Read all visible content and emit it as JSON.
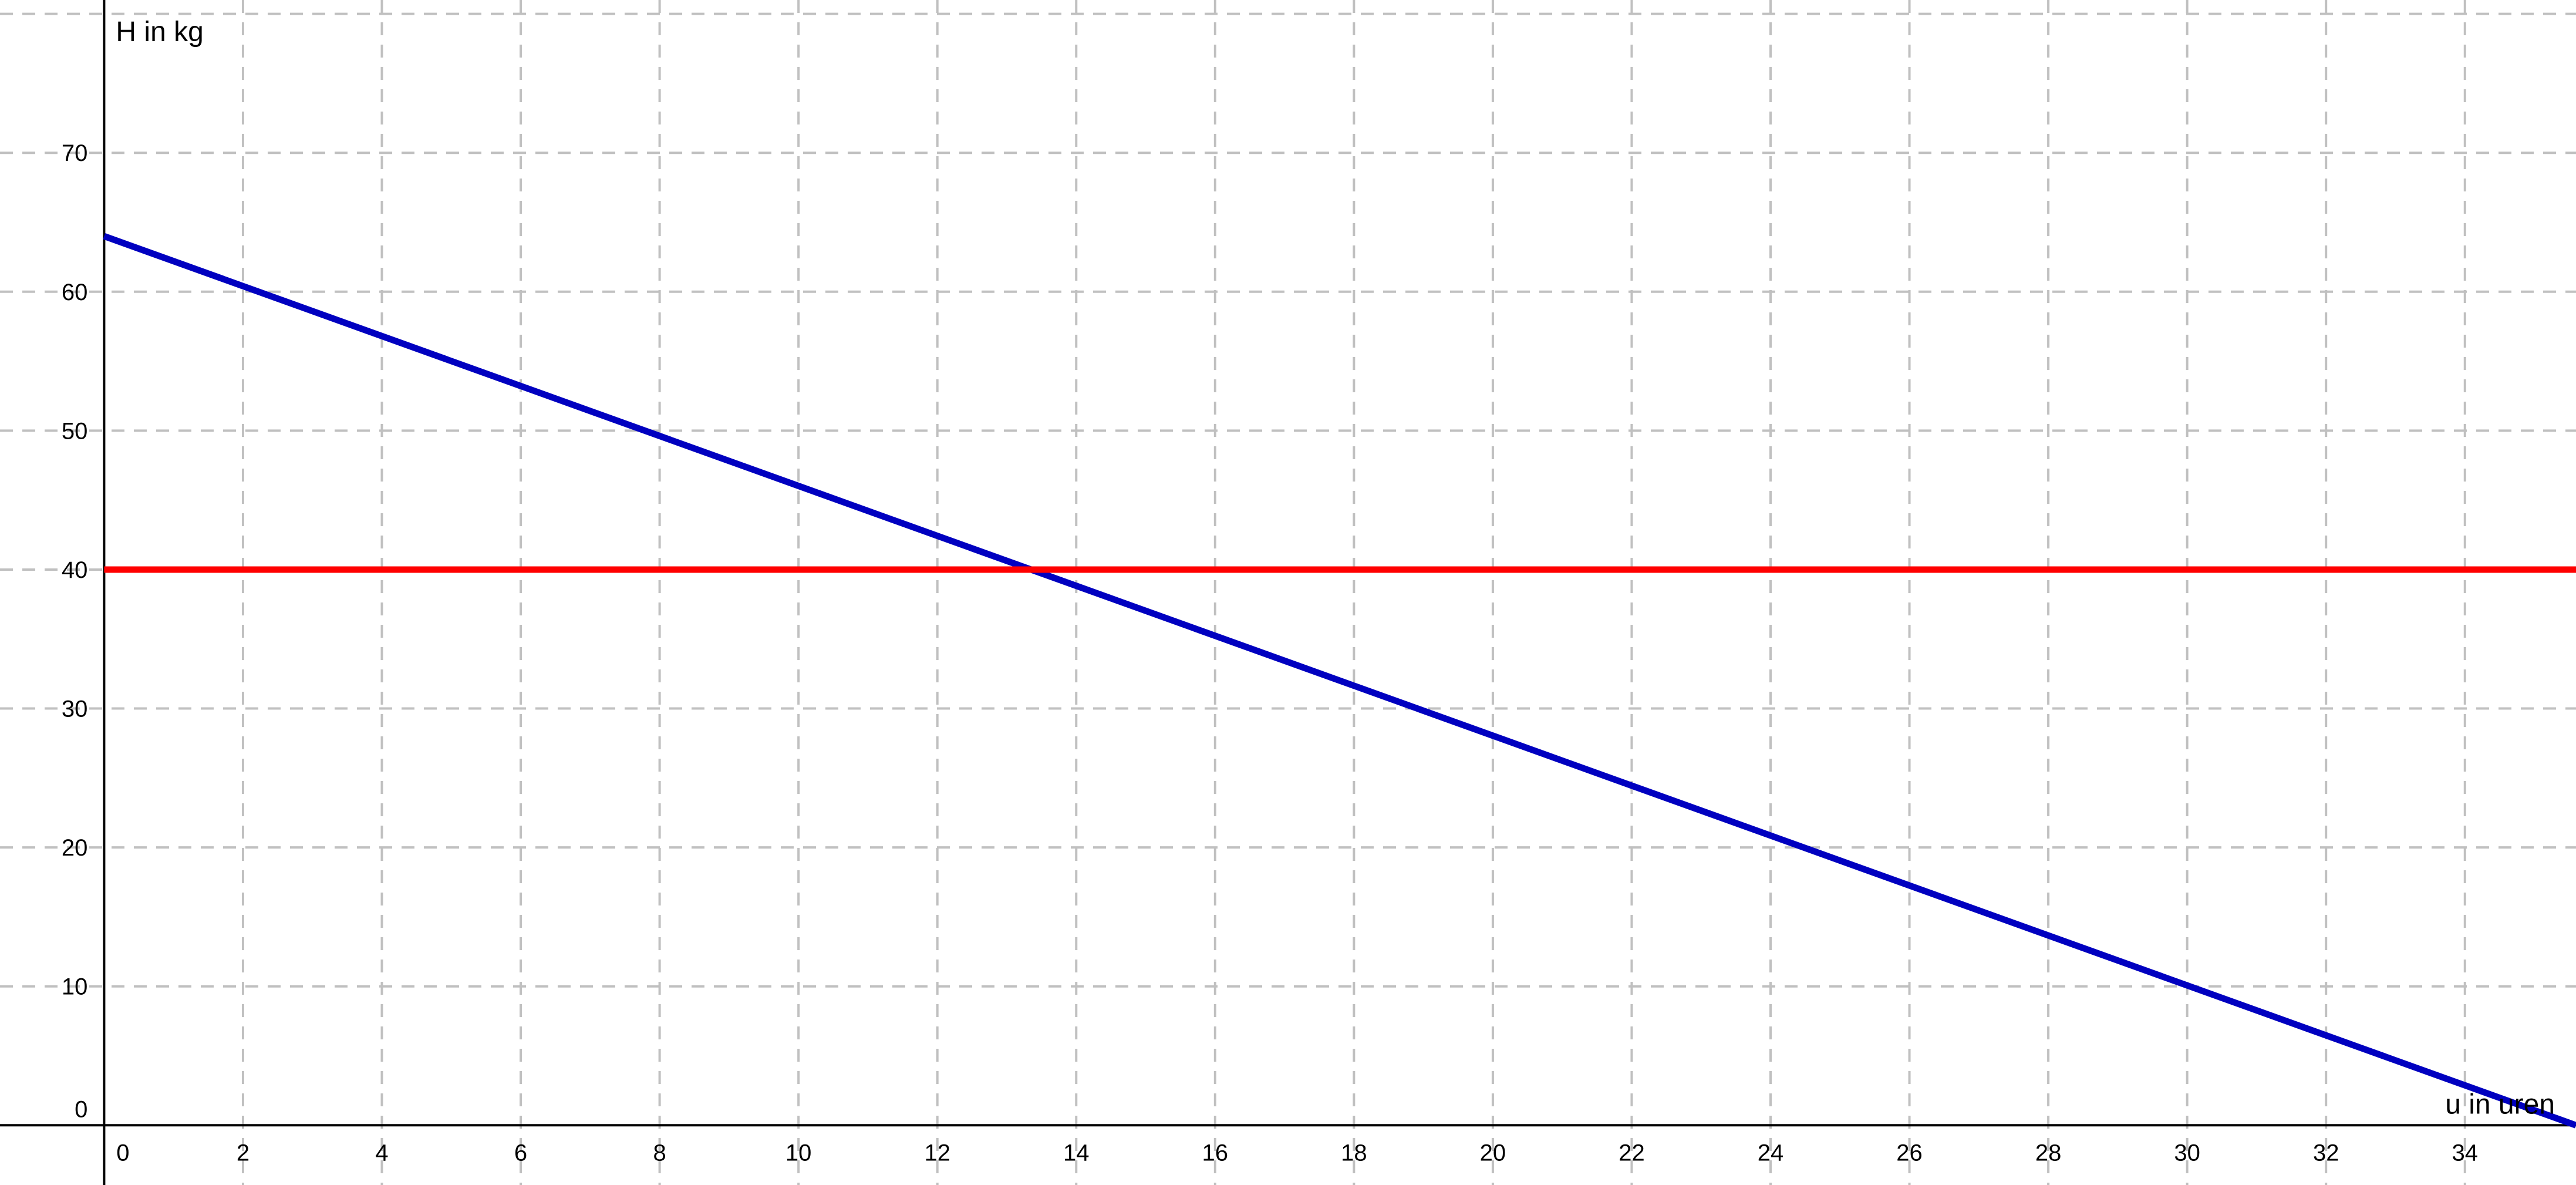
{
  "chart_data": {
    "type": "line",
    "title": "",
    "xlabel": "u in uren",
    "ylabel": "H in kg",
    "xlim": [
      -1.5,
      35.6
    ],
    "ylim": [
      -4.3,
      81
    ],
    "x_ticks": [
      0,
      2,
      4,
      6,
      8,
      10,
      12,
      14,
      16,
      18,
      20,
      22,
      24,
      26,
      28,
      30,
      32,
      34
    ],
    "y_ticks": [
      0,
      10,
      20,
      30,
      40,
      50,
      60,
      70
    ],
    "grid": true,
    "legend": "none",
    "series": [
      {
        "color": "#0000c0",
        "x": [
          0,
          35.6
        ],
        "y": [
          64,
          0
        ]
      },
      {
        "color": "#ff0000",
        "x": [
          0,
          35.6
        ],
        "y": [
          40,
          40
        ]
      }
    ]
  }
}
